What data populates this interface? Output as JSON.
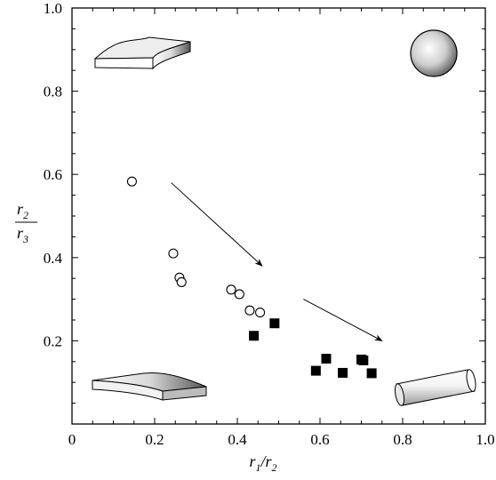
{
  "chart_data": {
    "type": "scatter",
    "title": "",
    "xlabel": "r1/r2",
    "ylabel": "r2/r3",
    "xlabel_parts": {
      "num_base": "r",
      "num_sub": "1",
      "den_base": "r",
      "den_sub": "2"
    },
    "ylabel_parts": {
      "num_base": "r",
      "num_sub": "2",
      "den_base": "r",
      "den_sub": "3"
    },
    "xlim": [
      0,
      1.0
    ],
    "ylim": [
      0,
      1.0
    ],
    "x_ticks": [
      "0",
      "0.2",
      "0.4",
      "0.6",
      "0.8",
      "1.0"
    ],
    "y_ticks": [
      "0.2",
      "0.4",
      "0.6",
      "0.8",
      "1.0"
    ],
    "grid": false,
    "series": [
      {
        "marker": "open-circle",
        "points": [
          {
            "x": 0.145,
            "y": 0.583
          },
          {
            "x": 0.245,
            "y": 0.41
          },
          {
            "x": 0.26,
            "y": 0.352
          },
          {
            "x": 0.265,
            "y": 0.341
          },
          {
            "x": 0.385,
            "y": 0.323
          },
          {
            "x": 0.405,
            "y": 0.312
          },
          {
            "x": 0.43,
            "y": 0.273
          },
          {
            "x": 0.455,
            "y": 0.268
          }
        ]
      },
      {
        "marker": "filled-square",
        "points": [
          {
            "x": 0.44,
            "y": 0.212
          },
          {
            "x": 0.49,
            "y": 0.242
          },
          {
            "x": 0.59,
            "y": 0.128
          },
          {
            "x": 0.615,
            "y": 0.157
          },
          {
            "x": 0.655,
            "y": 0.123
          },
          {
            "x": 0.7,
            "y": 0.155
          },
          {
            "x": 0.705,
            "y": 0.153
          },
          {
            "x": 0.725,
            "y": 0.122
          }
        ]
      }
    ],
    "arrows": [
      {
        "from": [
          0.24,
          0.58
        ],
        "to": [
          0.46,
          0.38
        ]
      },
      {
        "from": [
          0.56,
          0.3
        ],
        "to": [
          0.75,
          0.2
        ]
      }
    ],
    "shape_icons": [
      "sphere-icon",
      "curved-plate-icon",
      "flat-plate-icon",
      "cylinder-icon"
    ]
  }
}
